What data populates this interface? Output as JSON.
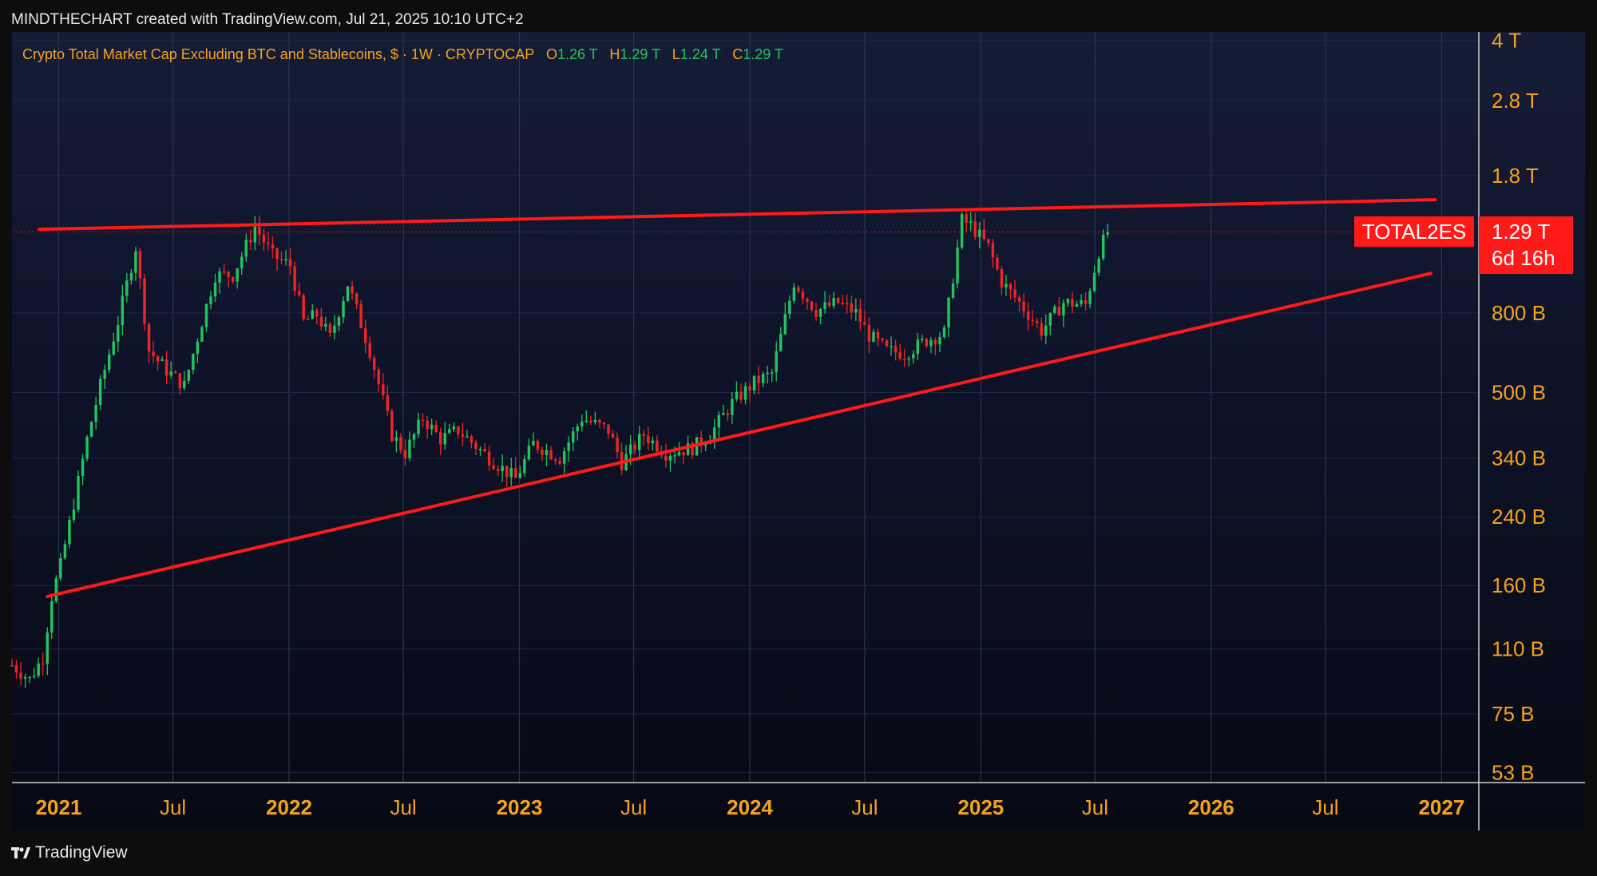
{
  "header": {
    "credit": "MINDTHECHART created with TradingView.com, Jul 21, 2025 10:10 UTC+2"
  },
  "legend": {
    "symbol": "Crypto Total Market Cap Excluding BTC and Stablecoins, $ · 1W · CRYPTOCAP",
    "o_label": "O",
    "o_value": "1.26 T",
    "h_label": "H",
    "h_value": "1.29 T",
    "l_label": "L",
    "l_value": "1.24 T",
    "c_label": "C",
    "c_value": "1.29 T"
  },
  "price_tag": {
    "ticker": "TOTAL2ES",
    "price": "1.29 T",
    "countdown": "6d 16h"
  },
  "footer": {
    "brand": "TradingView"
  },
  "colors": {
    "up": "#22c55e",
    "down": "#ef2525",
    "trendline": "#ff1a1a",
    "axis_text": "#f7a21b",
    "tag_bg": "#ff1a1a"
  },
  "chart_data": {
    "type": "candlestick",
    "scale": "log",
    "timeframe": "1W",
    "ylim": [
      50,
      4200
    ],
    "y_unit": "B",
    "y_ticks": [
      {
        "value": 4000,
        "label": "4 T"
      },
      {
        "value": 2800,
        "label": "2.8 T"
      },
      {
        "value": 1800,
        "label": "1.8 T"
      },
      {
        "value": 800,
        "label": "800 B"
      },
      {
        "value": 500,
        "label": "500 B"
      },
      {
        "value": 340,
        "label": "340 B"
      },
      {
        "value": 240,
        "label": "240 B"
      },
      {
        "value": 160,
        "label": "160 B"
      },
      {
        "value": 110,
        "label": "110 B"
      },
      {
        "value": 75,
        "label": "75 B"
      },
      {
        "value": 53,
        "label": "53 B"
      }
    ],
    "x_range": [
      "2020-10-19",
      "2027-03-01"
    ],
    "x_ticks": [
      {
        "date": "2021-01-01",
        "label": "2021",
        "major": true
      },
      {
        "date": "2021-07-01",
        "label": "Jul",
        "major": false
      },
      {
        "date": "2022-01-01",
        "label": "2022",
        "major": true
      },
      {
        "date": "2022-07-01",
        "label": "Jul",
        "major": false
      },
      {
        "date": "2023-01-01",
        "label": "2023",
        "major": true
      },
      {
        "date": "2023-07-01",
        "label": "Jul",
        "major": false
      },
      {
        "date": "2024-01-01",
        "label": "2024",
        "major": true
      },
      {
        "date": "2024-07-01",
        "label": "Jul",
        "major": false
      },
      {
        "date": "2025-01-01",
        "label": "2025",
        "major": true
      },
      {
        "date": "2025-07-01",
        "label": "Jul",
        "major": false
      },
      {
        "date": "2026-01-01",
        "label": "2026",
        "major": true
      },
      {
        "date": "2026-07-01",
        "label": "Jul",
        "major": false
      },
      {
        "date": "2027-01-01",
        "label": "2027",
        "major": true
      }
    ],
    "last_price": 1290,
    "trendlines": [
      {
        "name": "resistance",
        "from": {
          "date": "2020-12-01",
          "value": 1310
        },
        "to": {
          "date": "2026-12-22",
          "value": 1560
        }
      },
      {
        "name": "support",
        "from": {
          "date": "2020-12-14",
          "value": 150
        },
        "to": {
          "date": "2026-12-15",
          "value": 1010
        }
      }
    ],
    "anchors": [
      [
        "2020-10-19",
        100
      ],
      [
        "2020-11-16",
        92
      ],
      [
        "2020-12-07",
        105
      ],
      [
        "2020-12-21",
        150
      ],
      [
        "2021-01-04",
        180
      ],
      [
        "2021-01-25",
        260
      ],
      [
        "2021-02-15",
        380
      ],
      [
        "2021-03-08",
        520
      ],
      [
        "2021-04-05",
        760
      ],
      [
        "2021-05-03",
        1180
      ],
      [
        "2021-05-24",
        640
      ],
      [
        "2021-06-21",
        570
      ],
      [
        "2021-07-19",
        520
      ],
      [
        "2021-08-16",
        760
      ],
      [
        "2021-09-06",
        1000
      ],
      [
        "2021-10-04",
        1000
      ],
      [
        "2021-11-08",
        1330
      ],
      [
        "2021-12-06",
        1120
      ],
      [
        "2022-01-03",
        1060
      ],
      [
        "2022-01-24",
        760
      ],
      [
        "2022-02-14",
        790
      ],
      [
        "2022-03-07",
        690
      ],
      [
        "2022-04-04",
        950
      ],
      [
        "2022-05-09",
        640
      ],
      [
        "2022-06-13",
        390
      ],
      [
        "2022-07-04",
        350
      ],
      [
        "2022-08-01",
        430
      ],
      [
        "2022-08-29",
        380
      ],
      [
        "2022-09-26",
        400
      ],
      [
        "2022-11-14",
        340
      ],
      [
        "2022-12-26",
        300
      ],
      [
        "2023-01-23",
        370
      ],
      [
        "2023-03-06",
        340
      ],
      [
        "2023-04-10",
        430
      ],
      [
        "2023-05-22",
        400
      ],
      [
        "2023-06-12",
        330
      ],
      [
        "2023-07-17",
        390
      ],
      [
        "2023-08-21",
        350
      ],
      [
        "2023-10-02",
        360
      ],
      [
        "2023-10-30",
        390
      ],
      [
        "2023-12-04",
        470
      ],
      [
        "2024-01-08",
        530
      ],
      [
        "2024-02-05",
        560
      ],
      [
        "2024-03-11",
        960
      ],
      [
        "2024-04-15",
        810
      ],
      [
        "2024-05-20",
        850
      ],
      [
        "2024-06-17",
        800
      ],
      [
        "2024-07-08",
        700
      ],
      [
        "2024-08-05",
        640
      ],
      [
        "2024-09-02",
        630
      ],
      [
        "2024-10-07",
        680
      ],
      [
        "2024-11-04",
        710
      ],
      [
        "2024-12-02",
        1380
      ],
      [
        "2024-12-16",
        1340
      ],
      [
        "2025-01-13",
        1180
      ],
      [
        "2025-02-03",
        960
      ],
      [
        "2025-03-03",
        850
      ],
      [
        "2025-04-07",
        720
      ],
      [
        "2025-05-12",
        850
      ],
      [
        "2025-06-16",
        840
      ],
      [
        "2025-07-07",
        1150
      ],
      [
        "2025-07-21",
        1290
      ]
    ]
  }
}
